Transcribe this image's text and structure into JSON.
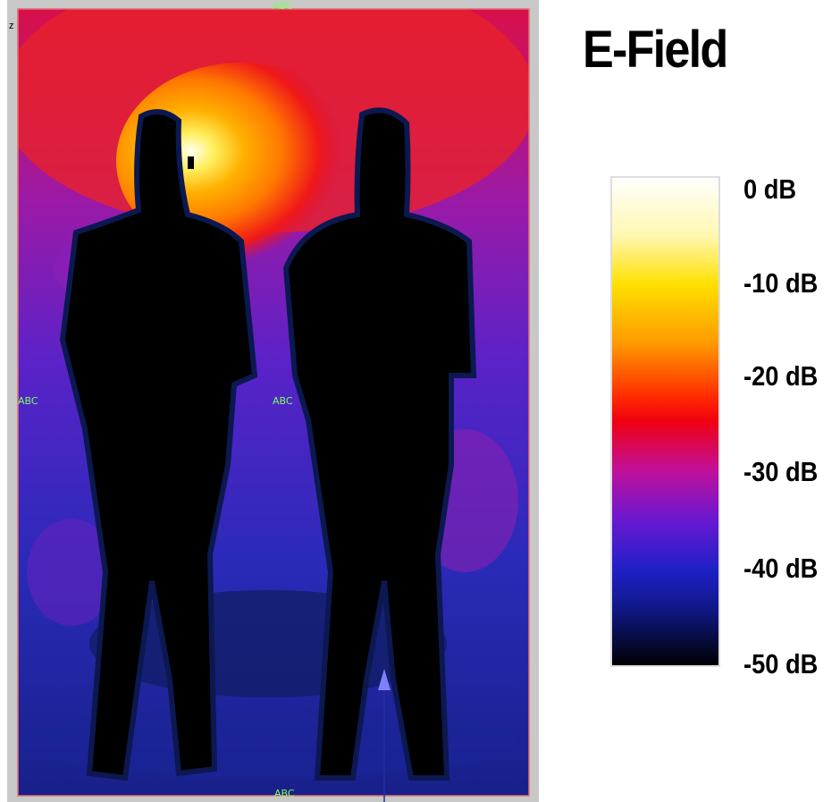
{
  "title": "E-Field",
  "colorbar": {
    "labels": [
      "0 dB",
      "-10 dB",
      "-20 dB",
      "-30 dB",
      "-40 dB",
      "-50 dB"
    ]
  },
  "viewport": {
    "axis_label": "z",
    "markers": [
      "ABC",
      "ABC",
      "ABC",
      "ABC"
    ]
  }
}
